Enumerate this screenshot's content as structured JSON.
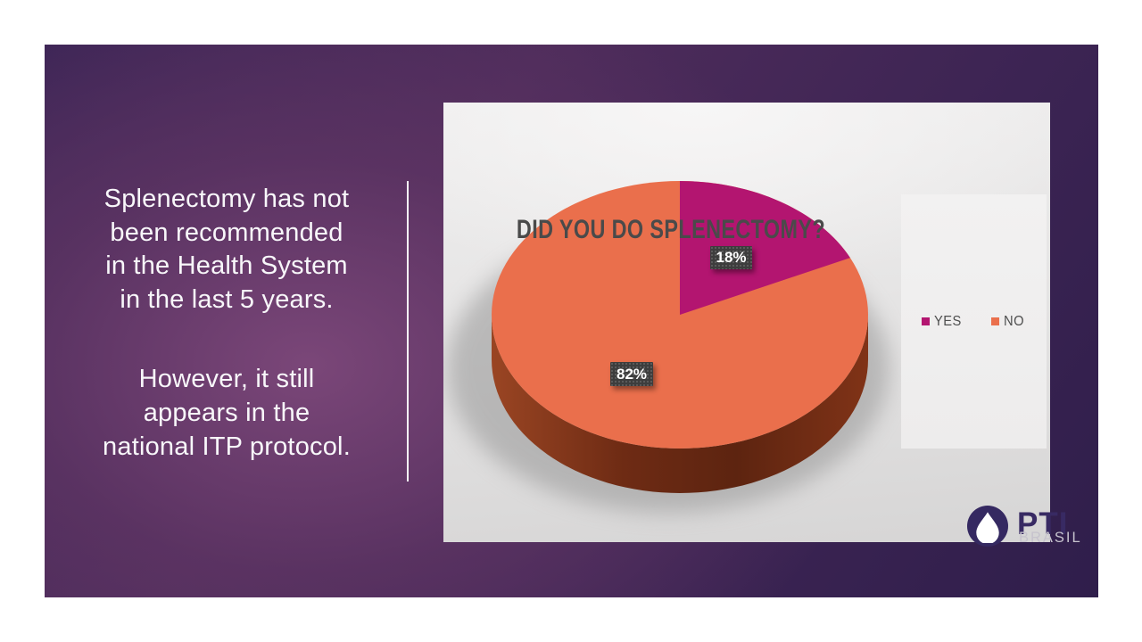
{
  "slide": {
    "left_panel": {
      "para1_lines": [
        "Splenectomy has not",
        "been recommended",
        "in the Health System",
        "in the last 5 years."
      ],
      "para2_lines": [
        "However, it still",
        "appears in the",
        "national ITP protocol."
      ]
    },
    "logo": {
      "name": "PTI",
      "subtitle": "BRASIL"
    },
    "colors": {
      "background_purple_light": "#74427a",
      "background_purple_dark": "#2f1e4b",
      "logo_purple": "#382a63"
    }
  },
  "chart_data": {
    "type": "pie",
    "style": "3d",
    "title": "DID YOU DO SPLENECTOMY?",
    "categories": [
      "YES",
      "NO"
    ],
    "values": [
      18,
      82
    ],
    "data_labels": [
      "18%",
      "82%"
    ],
    "colors": {
      "YES": "#b31570",
      "NO": "#ea6f4c"
    },
    "legend_position": "right",
    "legend_entries": [
      "YES",
      "NO"
    ]
  }
}
